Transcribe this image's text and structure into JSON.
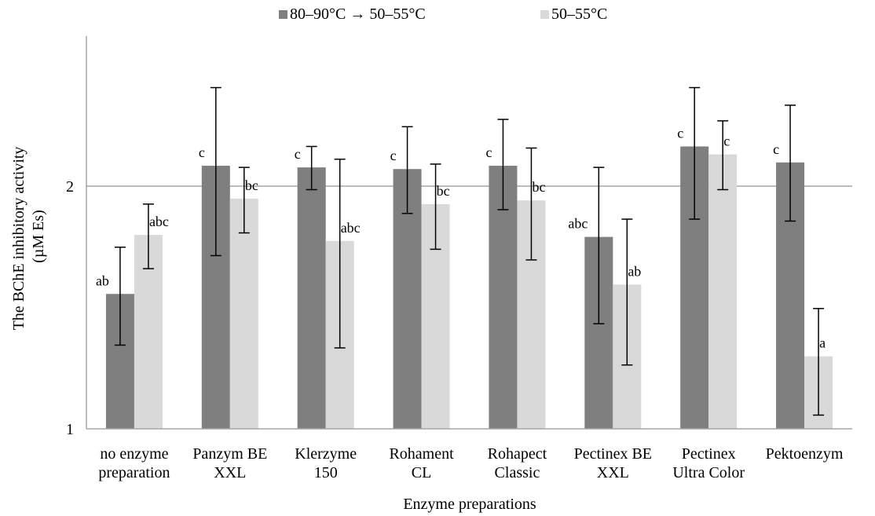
{
  "chart_data": {
    "type": "bar",
    "xlabel": "Enzyme preparations",
    "ylabel_lines": [
      "The BChE inhibitory activity",
      "(µM Es)"
    ],
    "yscale": "log",
    "ylim": [
      1,
      2.65
    ],
    "yticks": [
      1,
      2
    ],
    "ytick_labels": [
      "1",
      "2"
    ],
    "grid": true,
    "legend_position": "top",
    "categories": [
      [
        "no enzyme",
        "preparation"
      ],
      [
        "Panzym BE",
        "XXL"
      ],
      [
        "Klerzyme",
        "150"
      ],
      [
        "Rohament",
        "CL"
      ],
      [
        "Rohapect",
        "Classic"
      ],
      [
        "Pectinex BE",
        "XXL"
      ],
      [
        "Pectinex",
        "Ultra Color"
      ],
      [
        "Pektoenzym"
      ]
    ],
    "series": [
      {
        "name": "80–90°C → 50–55°C",
        "color": "#7f7f7f",
        "values": [
          1.47,
          2.12,
          2.11,
          2.1,
          2.12,
          1.73,
          2.24,
          2.14
        ],
        "err_low": [
          1.27,
          1.64,
          1.98,
          1.85,
          1.87,
          1.35,
          1.82,
          1.81
        ],
        "err_high": [
          1.68,
          2.65,
          2.24,
          2.37,
          2.42,
          2.11,
          2.65,
          2.52
        ],
        "labels": [
          "ab",
          "c",
          "c",
          "c",
          "c",
          "abc",
          "c",
          "c"
        ]
      },
      {
        "name": "50–55°C",
        "color": "#d9d9d9",
        "values": [
          1.74,
          1.93,
          1.71,
          1.9,
          1.92,
          1.51,
          2.19,
          1.23
        ],
        "err_low": [
          1.58,
          1.75,
          1.26,
          1.67,
          1.62,
          1.2,
          1.98,
          1.04
        ],
        "err_high": [
          1.9,
          2.11,
          2.16,
          2.13,
          2.23,
          1.82,
          2.41,
          1.41
        ],
        "labels": [
          "abc",
          "bc",
          "abc",
          "bc",
          "bc",
          "ab",
          "c",
          "a"
        ]
      }
    ]
  }
}
